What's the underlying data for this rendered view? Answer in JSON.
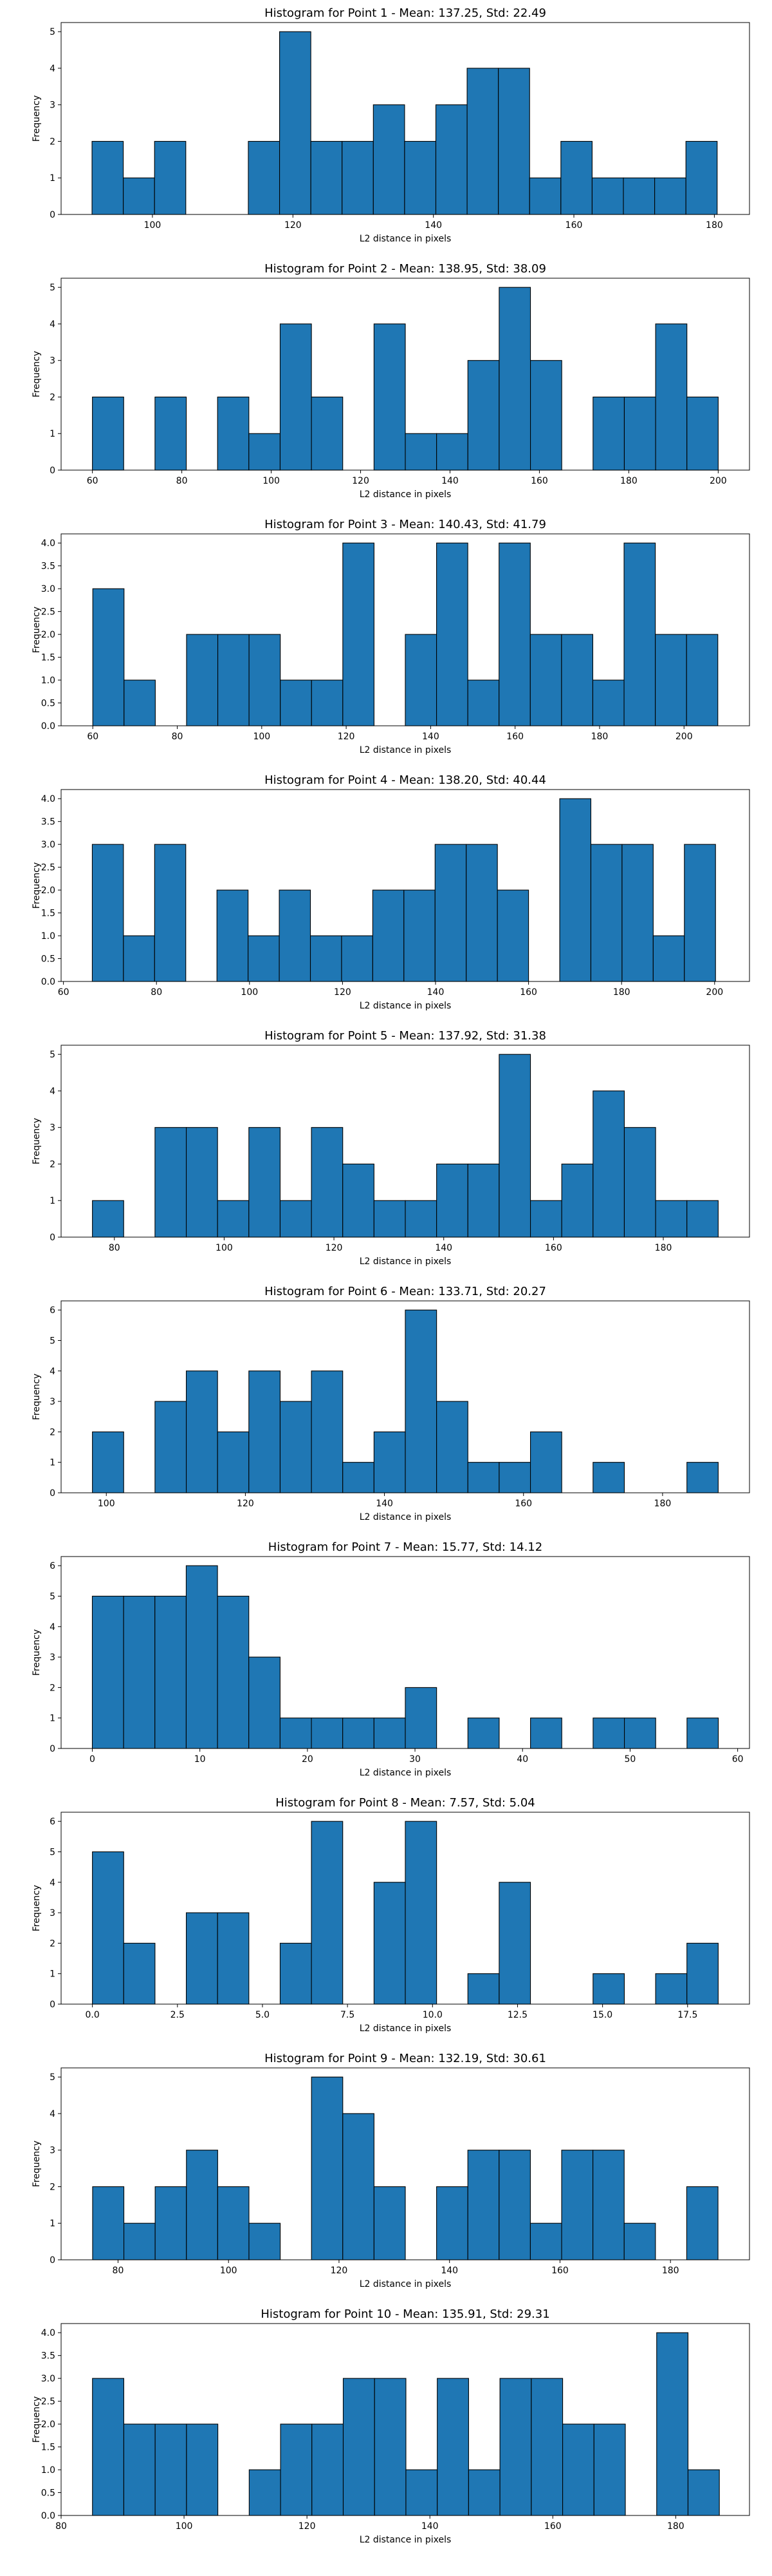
{
  "chart_data": [
    {
      "type": "bar",
      "title": "Histogram for Point 1 - Mean: 137.25, Std: 22.49",
      "xlabel": "L2 distance in pixels",
      "ylabel": "Frequency",
      "xlim": [
        87,
        185
      ],
      "ylim": [
        0,
        5.25
      ],
      "xticks": [
        100,
        120,
        140,
        160,
        180
      ],
      "yticks": [
        0,
        1,
        2,
        3,
        4,
        5
      ],
      "bins": {
        "start": 91.4,
        "width": 4.45,
        "counts": [
          2,
          1,
          2,
          0,
          0,
          2,
          5,
          2,
          2,
          3,
          2,
          3,
          4,
          4,
          1,
          2,
          1,
          1,
          1,
          2
        ]
      },
      "color": "#1f77b4"
    },
    {
      "type": "bar",
      "title": "Histogram for Point 2 - Mean: 138.95, Std: 38.09",
      "xlabel": "L2 distance in pixels",
      "ylabel": "Frequency",
      "xlim": [
        53,
        207
      ],
      "ylim": [
        0,
        5.25
      ],
      "xticks": [
        60,
        80,
        100,
        120,
        140,
        160,
        180,
        200
      ],
      "yticks": [
        0,
        1,
        2,
        3,
        4,
        5
      ],
      "bins": {
        "start": 60,
        "width": 7,
        "counts": [
          2,
          0,
          2,
          0,
          2,
          1,
          4,
          2,
          0,
          4,
          1,
          1,
          3,
          5,
          3,
          0,
          2,
          2,
          4,
          2
        ]
      },
      "color": "#1f77b4"
    },
    {
      "type": "bar",
      "title": "Histogram for Point 3 - Mean: 140.43, Std: 41.79",
      "xlabel": "L2 distance in pixels",
      "ylabel": "Frequency",
      "xlim": [
        52.5,
        215.5
      ],
      "ylim": [
        0,
        4.2
      ],
      "xticks": [
        60,
        80,
        100,
        120,
        140,
        160,
        180,
        200
      ],
      "yticks": [
        "0.0",
        "0.5",
        "1.0",
        "1.5",
        "2.0",
        "2.5",
        "3.0",
        "3.5",
        "4.0"
      ],
      "bins": {
        "start": 60,
        "width": 7.4,
        "counts": [
          3,
          1,
          0,
          2,
          2,
          2,
          1,
          1,
          4,
          0,
          2,
          4,
          1,
          4,
          2,
          2,
          1,
          4,
          2,
          2
        ]
      },
      "color": "#1f77b4"
    },
    {
      "type": "bar",
      "title": "Histogram for Point 4 - Mean: 138.20, Std: 40.44",
      "xlabel": "L2 distance in pixels",
      "ylabel": "Frequency",
      "xlim": [
        59.5,
        207.5
      ],
      "ylim": [
        0,
        4.2
      ],
      "xticks": [
        60,
        80,
        100,
        120,
        140,
        160,
        180,
        200
      ],
      "yticks": [
        "0.0",
        "0.5",
        "1.0",
        "1.5",
        "2.0",
        "2.5",
        "3.0",
        "3.5",
        "4.0"
      ],
      "bins": {
        "start": 66.2,
        "width": 6.7,
        "counts": [
          3,
          1,
          3,
          0,
          2,
          1,
          2,
          1,
          1,
          2,
          2,
          3,
          3,
          2,
          0,
          4,
          3,
          3,
          1,
          3
        ]
      },
      "color": "#1f77b4"
    },
    {
      "type": "bar",
      "title": "Histogram for Point 5 - Mean: 137.92, Std: 31.38",
      "xlabel": "L2 distance in pixels",
      "ylabel": "Frequency",
      "xlim": [
        70.3,
        195.7
      ],
      "ylim": [
        0,
        5.25
      ],
      "xticks": [
        80,
        100,
        120,
        140,
        160,
        180
      ],
      "yticks": [
        0,
        1,
        2,
        3,
        4,
        5
      ],
      "bins": {
        "start": 76,
        "width": 5.7,
        "counts": [
          1,
          0,
          3,
          3,
          1,
          3,
          1,
          3,
          2,
          1,
          1,
          2,
          2,
          5,
          1,
          2,
          4,
          3,
          1,
          1
        ]
      },
      "color": "#1f77b4"
    },
    {
      "type": "bar",
      "title": "Histogram for Point 6 - Mean: 133.71, Std: 20.27",
      "xlabel": "L2 distance in pixels",
      "ylabel": "Frequency",
      "xlim": [
        93.5,
        192.5
      ],
      "ylim": [
        0,
        6.3
      ],
      "xticks": [
        100,
        120,
        140,
        160,
        180
      ],
      "yticks": [
        0,
        1,
        2,
        3,
        4,
        5,
        6
      ],
      "bins": {
        "start": 98,
        "width": 4.5,
        "counts": [
          2,
          0,
          3,
          4,
          2,
          4,
          3,
          4,
          1,
          2,
          6,
          3,
          1,
          1,
          2,
          0,
          1,
          0,
          0,
          1
        ]
      },
      "color": "#1f77b4"
    },
    {
      "type": "bar",
      "title": "Histogram for Point 7 - Mean: 15.77, Std: 14.12",
      "xlabel": "L2 distance in pixels",
      "ylabel": "Frequency",
      "xlim": [
        -2.9,
        61.1
      ],
      "ylim": [
        0,
        6.3
      ],
      "xticks": [
        0,
        10,
        20,
        30,
        40,
        50,
        60
      ],
      "yticks": [
        0,
        1,
        2,
        3,
        4,
        5,
        6
      ],
      "bins": {
        "start": 0,
        "width": 2.91,
        "counts": [
          5,
          5,
          5,
          6,
          5,
          3,
          1,
          1,
          1,
          1,
          2,
          0,
          1,
          0,
          1,
          0,
          1,
          1,
          0,
          1
        ]
      },
      "color": "#1f77b4"
    },
    {
      "type": "bar",
      "title": "Histogram for Point 8 - Mean: 7.57, Std: 5.04",
      "xlabel": "L2 distance in pixels",
      "ylabel": "Frequency",
      "xlim": [
        -0.92,
        19.32
      ],
      "ylim": [
        0,
        6.3
      ],
      "xticks": [
        "0.0",
        "2.5",
        "5.0",
        "7.5",
        "10.0",
        "12.5",
        "15.0",
        "17.5"
      ],
      "yticks": [
        0,
        1,
        2,
        3,
        4,
        5,
        6
      ],
      "bins": {
        "start": 0,
        "width": 0.92,
        "counts": [
          5,
          2,
          0,
          3,
          3,
          0,
          2,
          6,
          0,
          4,
          6,
          0,
          1,
          4,
          0,
          0,
          1,
          0,
          1,
          2
        ]
      },
      "color": "#1f77b4"
    },
    {
      "type": "bar",
      "title": "Histogram for Point 9 - Mean: 132.19, Std: 30.61",
      "xlabel": "L2 distance in pixels",
      "ylabel": "Frequency",
      "xlim": [
        69.7,
        194.3
      ],
      "ylim": [
        0,
        5.25
      ],
      "xticks": [
        80,
        100,
        120,
        140,
        160,
        180
      ],
      "yticks": [
        0,
        1,
        2,
        3,
        4,
        5
      ],
      "bins": {
        "start": 75.4,
        "width": 5.66,
        "counts": [
          2,
          1,
          2,
          3,
          2,
          1,
          0,
          5,
          4,
          2,
          0,
          2,
          3,
          3,
          1,
          3,
          3,
          1,
          0,
          2
        ]
      },
      "color": "#1f77b4"
    },
    {
      "type": "bar",
      "title": "Histogram for Point 10 - Mean: 135.91, Std: 29.31",
      "xlabel": "L2 distance in pixels",
      "ylabel": "Frequency",
      "xlim": [
        80,
        192
      ],
      "ylim": [
        0,
        4.2
      ],
      "xticks": [
        80,
        100,
        120,
        140,
        160,
        180
      ],
      "yticks": [
        "0.0",
        "0.5",
        "1.0",
        "1.5",
        "2.0",
        "2.5",
        "3.0",
        "3.5",
        "4.0"
      ],
      "bins": {
        "start": 85.1,
        "width": 5.1,
        "counts": [
          3,
          2,
          2,
          2,
          0,
          1,
          2,
          2,
          3,
          3,
          1,
          3,
          1,
          3,
          3,
          2,
          2,
          0,
          4,
          1
        ]
      },
      "color": "#1f77b4"
    }
  ]
}
